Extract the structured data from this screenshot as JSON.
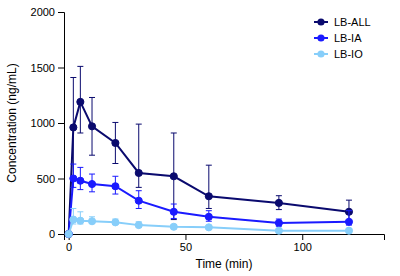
{
  "chart_data": {
    "type": "line",
    "xlabel": "Time (min)",
    "ylabel": "Concentration (ng/mL)",
    "x": [
      0,
      2,
      5,
      10,
      20,
      30,
      45,
      60,
      90,
      120
    ],
    "series": [
      {
        "name": "LB-ALL",
        "color": "#0a0a6e",
        "marker": "circle",
        "values": [
          0,
          960,
          1190,
          970,
          820,
          550,
          520,
          340,
          280,
          200
        ],
        "error_lo": [
          0,
          450,
          280,
          260,
          185,
          130,
          390,
          110,
          60,
          80
        ],
        "error_hi": [
          0,
          450,
          320,
          260,
          185,
          440,
          390,
          280,
          65,
          105
        ]
      },
      {
        "name": "LB-IA",
        "color": "#1a1aff",
        "marker": "circle",
        "values": [
          0,
          500,
          480,
          450,
          430,
          300,
          200,
          155,
          100,
          110
        ],
        "error_lo": [
          0,
          80,
          80,
          70,
          70,
          70,
          60,
          40,
          30,
          30
        ],
        "error_hi": [
          0,
          130,
          120,
          90,
          90,
          90,
          70,
          55,
          35,
          100
        ]
      },
      {
        "name": "LB-IO",
        "color": "#87CEFA",
        "marker": "circle",
        "values": [
          0,
          130,
          120,
          115,
          105,
          80,
          65,
          60,
          30,
          30
        ],
        "error_lo": [
          0,
          40,
          30,
          20,
          20,
          15,
          10,
          15,
          5,
          10
        ],
        "error_hi": [
          0,
          100,
          80,
          40,
          30,
          30,
          20,
          15,
          10,
          10
        ]
      }
    ],
    "xlim": [
      -2,
      135
    ],
    "xticks": [
      0,
      50,
      100
    ],
    "ylim": [
      0,
      2000
    ],
    "yticks": [
      0,
      500,
      1000,
      1500,
      2000
    ],
    "grid": false,
    "legend": "upper right"
  }
}
